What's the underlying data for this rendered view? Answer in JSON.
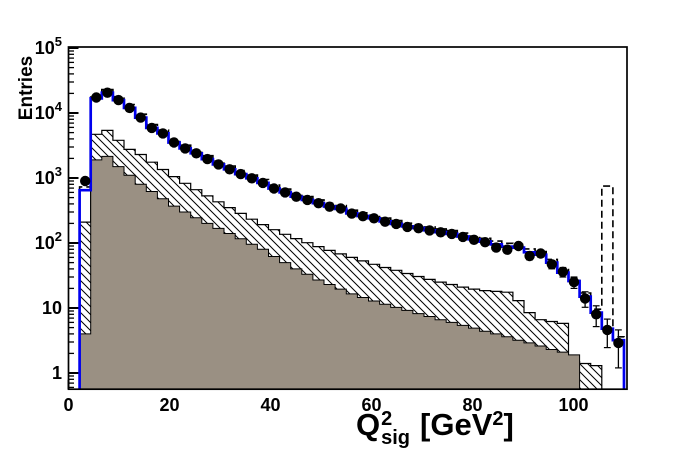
{
  "colors": {
    "background": "#ffffff",
    "frame": "#000000",
    "tick": "#000000",
    "text": "#000000",
    "blue_histogram": "#0000ee",
    "dashed_histogram": "#000000",
    "gray_fill": "#9a9083",
    "hatch_line": "#000000",
    "marker": "#000000"
  },
  "chart_data": {
    "type": "histogram",
    "title": "",
    "y_axis": {
      "title": "Entries",
      "scale": "log",
      "range": [
        0.57,
        103000
      ],
      "decade_values": [
        1,
        10,
        100,
        1000,
        10000,
        100000
      ],
      "decade_labels": [
        {
          "m": "1",
          "e": ""
        },
        {
          "m": "10",
          "e": ""
        },
        {
          "m": "10",
          "e": "2"
        },
        {
          "m": "10",
          "e": "3"
        },
        {
          "m": "10",
          "e": "4"
        },
        {
          "m": "10",
          "e": "5"
        }
      ]
    },
    "x_axis": {
      "title_parts": {
        "main": "Q",
        "sup": "2",
        "sub": "sig",
        "unit_pre": "[GeV",
        "unit_sup": "2",
        "unit_post": "]"
      },
      "range": [
        0,
        110.7
      ],
      "tick_values": [
        0,
        20,
        40,
        60,
        80,
        100
      ],
      "tick_labels": [
        "0",
        "20",
        "40",
        "60",
        "80",
        "100"
      ],
      "minor_step": 5
    },
    "bins": {
      "start": 0,
      "width": 2.2,
      "count": 50
    },
    "series": [
      {
        "name": "background-gray",
        "style": "solid-gray-fill",
        "values": [
          0,
          4,
          1900,
          2150,
          1500,
          1100,
          800,
          620,
          480,
          370,
          300,
          245,
          200,
          168,
          140,
          116,
          96,
          80,
          62,
          50,
          40,
          33,
          27,
          23,
          19.5,
          16.5,
          14.5,
          12.8,
          11.4,
          10.2,
          9.2,
          8.2,
          7.4,
          6.6,
          6.0,
          5.4,
          4.9,
          4.4,
          4.0,
          3.6,
          3.2,
          2.9,
          2.6,
          2.3,
          2.1,
          1.9,
          0,
          0,
          0,
          0
        ]
      },
      {
        "name": "background-hatched",
        "style": "diagonal-hatch-fill",
        "values": [
          0,
          210,
          4700,
          5400,
          3800,
          2750,
          2300,
          1750,
          1350,
          1050,
          830,
          660,
          530,
          430,
          350,
          285,
          232,
          192,
          160,
          136,
          117,
          101,
          88,
          77,
          68,
          60,
          53,
          47,
          42,
          38,
          34,
          30.5,
          27.5,
          25,
          23,
          21,
          19.5,
          18.5,
          18,
          17.5,
          13,
          8.5,
          6.6,
          6.2,
          5.8,
          1.5,
          1.4,
          1.3,
          0,
          0
        ]
      },
      {
        "name": "total-mc-blue",
        "style": "blue-step-line",
        "values": [
          0,
          650,
          16800,
          20500,
          15800,
          12000,
          8500,
          5900,
          4850,
          3520,
          2850,
          2400,
          1950,
          1620,
          1360,
          1150,
          990,
          840,
          690,
          600,
          515,
          460,
          410,
          365,
          335,
          285,
          260,
          240,
          215,
          197,
          180,
          170,
          157,
          147,
          138,
          126,
          114,
          105,
          95,
          88,
          85,
          72,
          66,
          50,
          35,
          26,
          15,
          8.5,
          4.8,
          3.2
        ]
      },
      {
        "name": "alt-mc-dashed",
        "style": "black-dashed-step-line",
        "values": [
          0,
          730,
          19000,
          23000,
          17800,
          13500,
          9600,
          6650,
          5450,
          3950,
          3200,
          2700,
          2200,
          1820,
          1530,
          1300,
          1110,
          945,
          780,
          675,
          580,
          520,
          460,
          410,
          378,
          320,
          292,
          270,
          242,
          222,
          202,
          191,
          177,
          165,
          155,
          142,
          128,
          118,
          107,
          99,
          96,
          81,
          74,
          56,
          39,
          29,
          17,
          9.6,
          750,
          3.6
        ]
      },
      {
        "name": "data-points",
        "style": "black-markers-error-bars",
        "values": [
          0,
          900,
          17300,
          20500,
          15800,
          12000,
          8500,
          5900,
          4850,
          3520,
          2850,
          2400,
          1950,
          1620,
          1360,
          1150,
          990,
          840,
          690,
          600,
          515,
          460,
          410,
          362,
          340,
          283,
          258,
          240,
          213,
          197,
          177,
          169,
          156,
          146,
          138,
          124,
          112,
          103,
          85,
          79,
          90,
          63,
          69,
          47,
          36,
          25,
          14,
          8,
          4.6,
          2.9
        ]
      }
    ]
  }
}
